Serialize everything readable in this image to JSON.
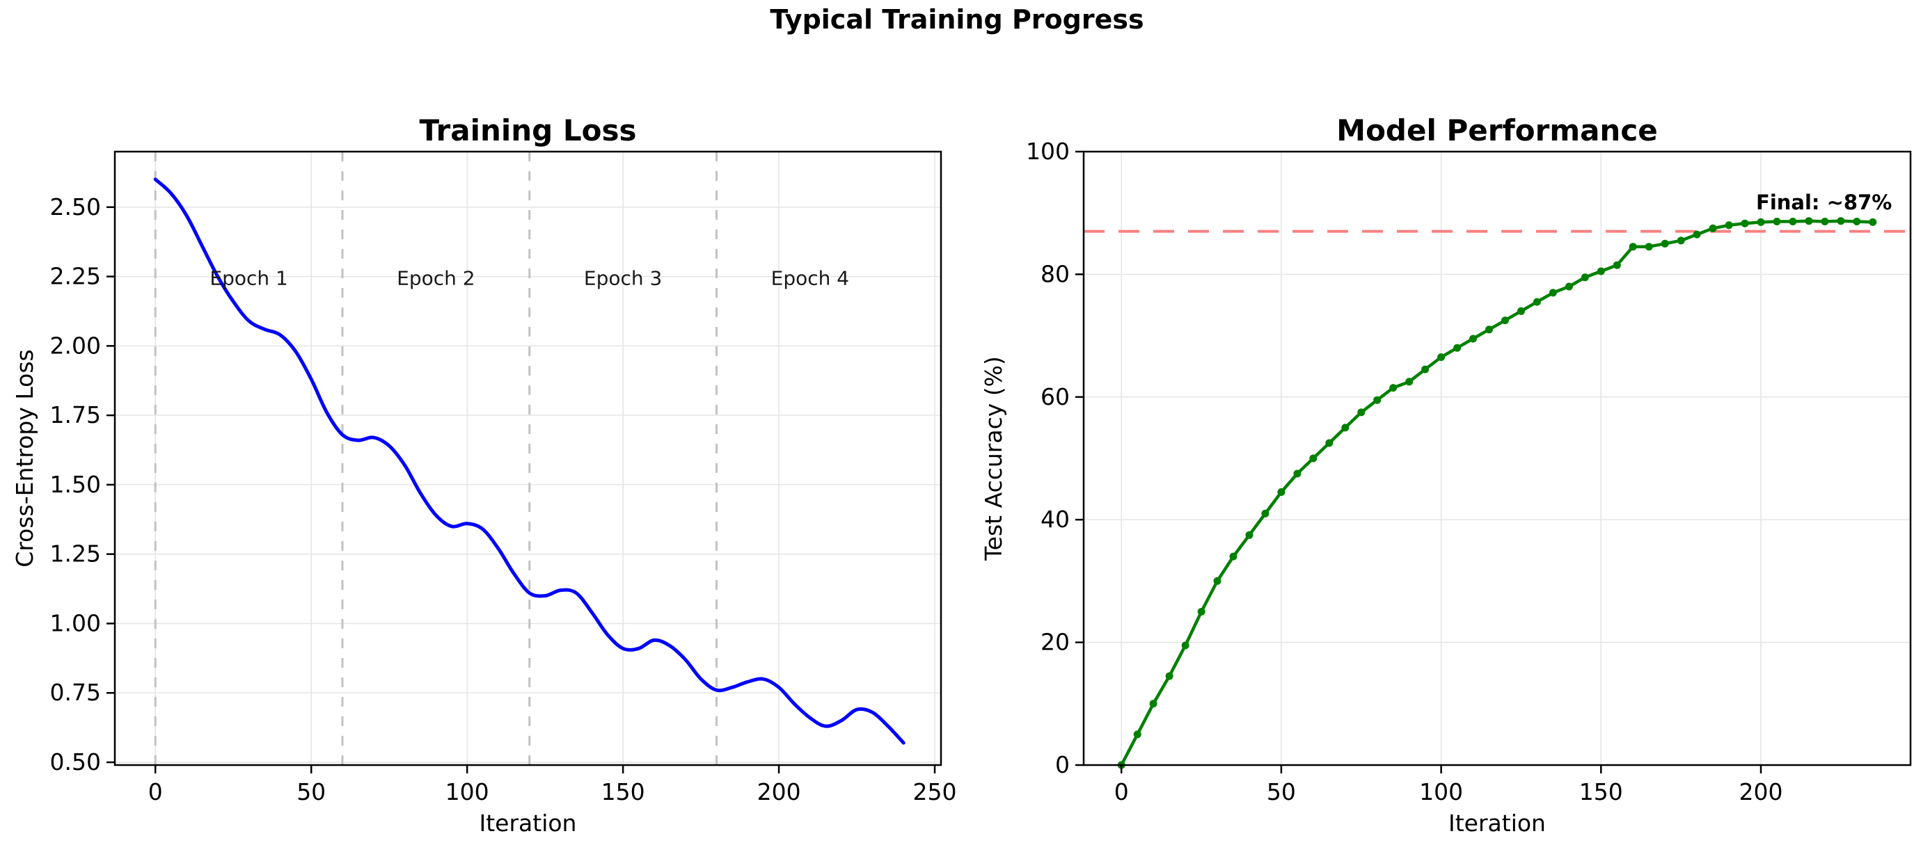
{
  "figure": {
    "suptitle": "Typical Training Progress",
    "background": "#ffffff",
    "text_color": "#000000",
    "spine_color": "#000000",
    "grid_color": "#e4e4e4"
  },
  "chart_data": [
    {
      "id": "training-loss",
      "type": "line",
      "title": "Training Loss",
      "xlabel": "Iteration",
      "ylabel": "Cross-Entropy Loss",
      "xlim": [
        -13,
        252
      ],
      "ylim": [
        0.49,
        2.7
      ],
      "xticks": [
        0,
        50,
        100,
        150,
        200,
        250
      ],
      "xtick_labels": [
        "0",
        "50",
        "100",
        "150",
        "200",
        "250"
      ],
      "yticks": [
        0.5,
        0.75,
        1.0,
        1.25,
        1.5,
        1.75,
        2.0,
        2.25,
        2.5
      ],
      "ytick_labels": [
        "0.50",
        "0.75",
        "1.00",
        "1.25",
        "1.50",
        "1.75",
        "2.00",
        "2.25",
        "2.50"
      ],
      "grid": true,
      "vlines": {
        "x": [
          0,
          60,
          120,
          180
        ],
        "color": "#c2c2c2",
        "dash": [
          14,
          14
        ],
        "width": 3
      },
      "hlines": null,
      "series": [
        {
          "name": "training-loss-curve",
          "color": "#0000ff",
          "width": 5,
          "smooth": true,
          "marker": null,
          "x": [
            0,
            5,
            10,
            15,
            20,
            25,
            30,
            35,
            40,
            45,
            50,
            55,
            60,
            65,
            70,
            75,
            80,
            85,
            90,
            95,
            100,
            105,
            110,
            115,
            120,
            125,
            130,
            135,
            140,
            145,
            150,
            155,
            160,
            165,
            170,
            175,
            180,
            185,
            190,
            195,
            200,
            205,
            210,
            215,
            220,
            225,
            230,
            235,
            240
          ],
          "y": [
            2.6,
            2.55,
            2.47,
            2.36,
            2.25,
            2.16,
            2.09,
            2.06,
            2.04,
            1.98,
            1.88,
            1.76,
            1.68,
            1.66,
            1.67,
            1.64,
            1.57,
            1.47,
            1.39,
            1.35,
            1.36,
            1.34,
            1.27,
            1.18,
            1.11,
            1.1,
            1.12,
            1.11,
            1.04,
            0.96,
            0.91,
            0.91,
            0.94,
            0.92,
            0.87,
            0.8,
            0.76,
            0.77,
            0.79,
            0.8,
            0.77,
            0.71,
            0.66,
            0.63,
            0.65,
            0.69,
            0.68,
            0.63,
            0.57
          ]
        }
      ],
      "annotations": [
        {
          "text": "Epoch 1",
          "x": 30,
          "y": 2.22,
          "size": 28,
          "bold": false,
          "anchor": "middle",
          "color": "#1a1a1a"
        },
        {
          "text": "Epoch 2",
          "x": 90,
          "y": 2.22,
          "size": 28,
          "bold": false,
          "anchor": "middle",
          "color": "#1a1a1a"
        },
        {
          "text": "Epoch 3",
          "x": 150,
          "y": 2.22,
          "size": 28,
          "bold": false,
          "anchor": "middle",
          "color": "#1a1a1a"
        },
        {
          "text": "Epoch 4",
          "x": 210,
          "y": 2.22,
          "size": 28,
          "bold": false,
          "anchor": "middle",
          "color": "#1a1a1a"
        }
      ]
    },
    {
      "id": "model-performance",
      "type": "line",
      "title": "Model Performance",
      "xlabel": "Iteration",
      "ylabel": "Test Accuracy (%)",
      "xlim": [
        -11.8,
        246.8
      ],
      "ylim": [
        0,
        100
      ],
      "xticks": [
        0,
        50,
        100,
        150,
        200
      ],
      "xtick_labels": [
        "0",
        "50",
        "100",
        "150",
        "200"
      ],
      "yticks": [
        0,
        20,
        40,
        60,
        80,
        100
      ],
      "ytick_labels": [
        "0",
        "20",
        "40",
        "60",
        "80",
        "100"
      ],
      "grid": true,
      "vlines": null,
      "hlines": {
        "y": [
          87
        ],
        "color": "#f98080",
        "dash": [
          30,
          20
        ],
        "width": 4
      },
      "series": [
        {
          "name": "test-accuracy-curve",
          "color": "#008000",
          "width": 4.5,
          "smooth": false,
          "marker": {
            "shape": "circle",
            "r": 5.5
          },
          "x": [
            0,
            5,
            10,
            15,
            20,
            25,
            30,
            35,
            40,
            45,
            50,
            55,
            60,
            65,
            70,
            75,
            80,
            85,
            90,
            95,
            100,
            105,
            110,
            115,
            120,
            125,
            130,
            135,
            140,
            145,
            150,
            155,
            160,
            165,
            170,
            175,
            180,
            185,
            190,
            195,
            200,
            205,
            210,
            215,
            220,
            225,
            230,
            235
          ],
          "y": [
            0,
            5,
            10,
            14.5,
            19.5,
            25,
            30,
            34,
            37.5,
            41,
            44.5,
            47.5,
            50,
            52.5,
            55,
            57.5,
            59.5,
            61.5,
            62.5,
            64.5,
            66.5,
            68,
            69.5,
            71,
            72.5,
            74,
            75.5,
            77,
            78,
            79.5,
            80.5,
            81.5,
            84.5,
            84.5,
            85,
            85.5,
            86.5,
            87.5,
            88,
            88.3,
            88.5,
            88.6,
            88.6,
            88.7,
            88.6,
            88.7,
            88.6,
            88.5
          ]
        }
      ],
      "annotations": [
        {
          "text": "Final: ~87%",
          "x": 241,
          "y": 90.6,
          "size": 29,
          "bold": true,
          "anchor": "end",
          "color": "#000000"
        }
      ]
    }
  ]
}
